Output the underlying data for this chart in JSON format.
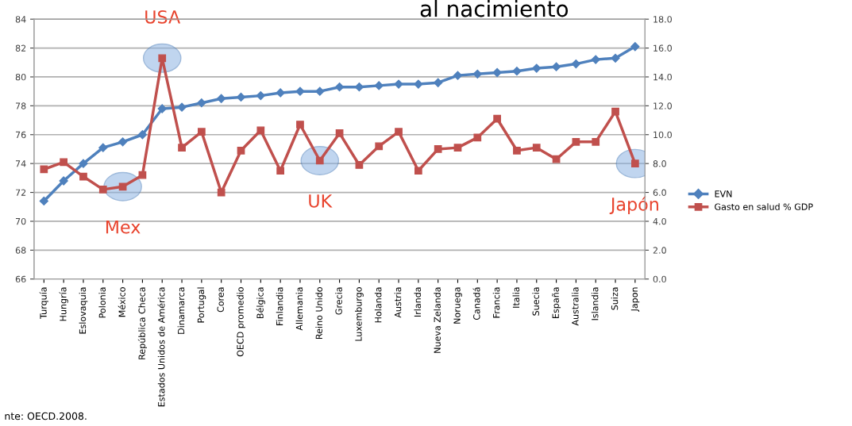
{
  "chart_data": {
    "type": "line",
    "title": "al nacimiento",
    "categories": [
      "Turquía",
      "Hungría",
      "Eslovaquia",
      "Polonia",
      "México",
      "República Checa",
      "Estados Unidos de América",
      "Dinamarca",
      "Portugal",
      "Corea",
      "OECD promedio",
      "Bélgica",
      "Finlandia",
      "Allemania",
      "Reino Unido",
      "Grecia",
      "Luxemburgo",
      "Holanda",
      "Austria",
      "Irlanda",
      "Nueva Zelanda",
      "Noruega",
      "Canadá",
      "Francia",
      "Italia",
      "Suecia",
      "España",
      "Australia",
      "Islandia",
      "Suiza",
      "Japon"
    ],
    "series": [
      {
        "name": "EVN",
        "color": "#4f81bd",
        "marker": "diamond",
        "values": [
          71.4,
          72.8,
          74.0,
          75.1,
          75.5,
          76.0,
          77.8,
          77.9,
          78.2,
          78.5,
          78.6,
          78.7,
          78.9,
          79.0,
          79.0,
          79.3,
          79.3,
          79.4,
          79.5,
          79.5,
          79.6,
          80.1,
          80.2,
          80.3,
          80.4,
          80.6,
          80.7,
          80.9,
          81.2,
          81.3,
          82.1
        ]
      },
      {
        "name": "Gasto en salud % GDP",
        "color": "#c0504d",
        "marker": "square",
        "axis": "y2",
        "values": [
          7.6,
          8.1,
          7.1,
          6.2,
          6.4,
          7.2,
          15.3,
          9.1,
          10.2,
          6.0,
          8.9,
          10.3,
          7.5,
          10.7,
          8.2,
          10.1,
          7.9,
          9.2,
          10.2,
          7.5,
          9.0,
          9.1,
          9.8,
          11.1,
          8.9,
          9.1,
          8.3,
          9.5,
          9.5,
          11.6,
          8.0
        ]
      }
    ],
    "ylim": [
      66,
      84
    ],
    "yticks": [
      66,
      68,
      70,
      72,
      74,
      76,
      78,
      80,
      82,
      84
    ],
    "y2lim": [
      0,
      18
    ],
    "y2ticks": [
      {
        "value": 0,
        "label": "0.0"
      },
      {
        "value": 2,
        "label": "2.0"
      },
      {
        "value": 4,
        "label": "4.0"
      },
      {
        "value": 6,
        "label": "6.0"
      },
      {
        "value": 8,
        "label": "8.0"
      },
      {
        "value": 10,
        "label": "10.0"
      },
      {
        "value": 12,
        "label": "12.0"
      },
      {
        "value": 14,
        "label": "14.0"
      },
      {
        "value": 16,
        "label": "16.0"
      },
      {
        "value": 18,
        "label": "18.0"
      }
    ],
    "grid": "y",
    "legend": "right",
    "annotations": [
      {
        "text": "USA",
        "x": "Estados Unidos de América",
        "y": 81.3
      },
      {
        "text": "Mex",
        "x": "México",
        "y": 72.4
      },
      {
        "text": "UK",
        "x": "Reino Unido",
        "y": 74.2
      },
      {
        "text": "Japón",
        "x": "Japon",
        "y": 74.0
      },
      "nte: OECD.2008."
    ]
  }
}
